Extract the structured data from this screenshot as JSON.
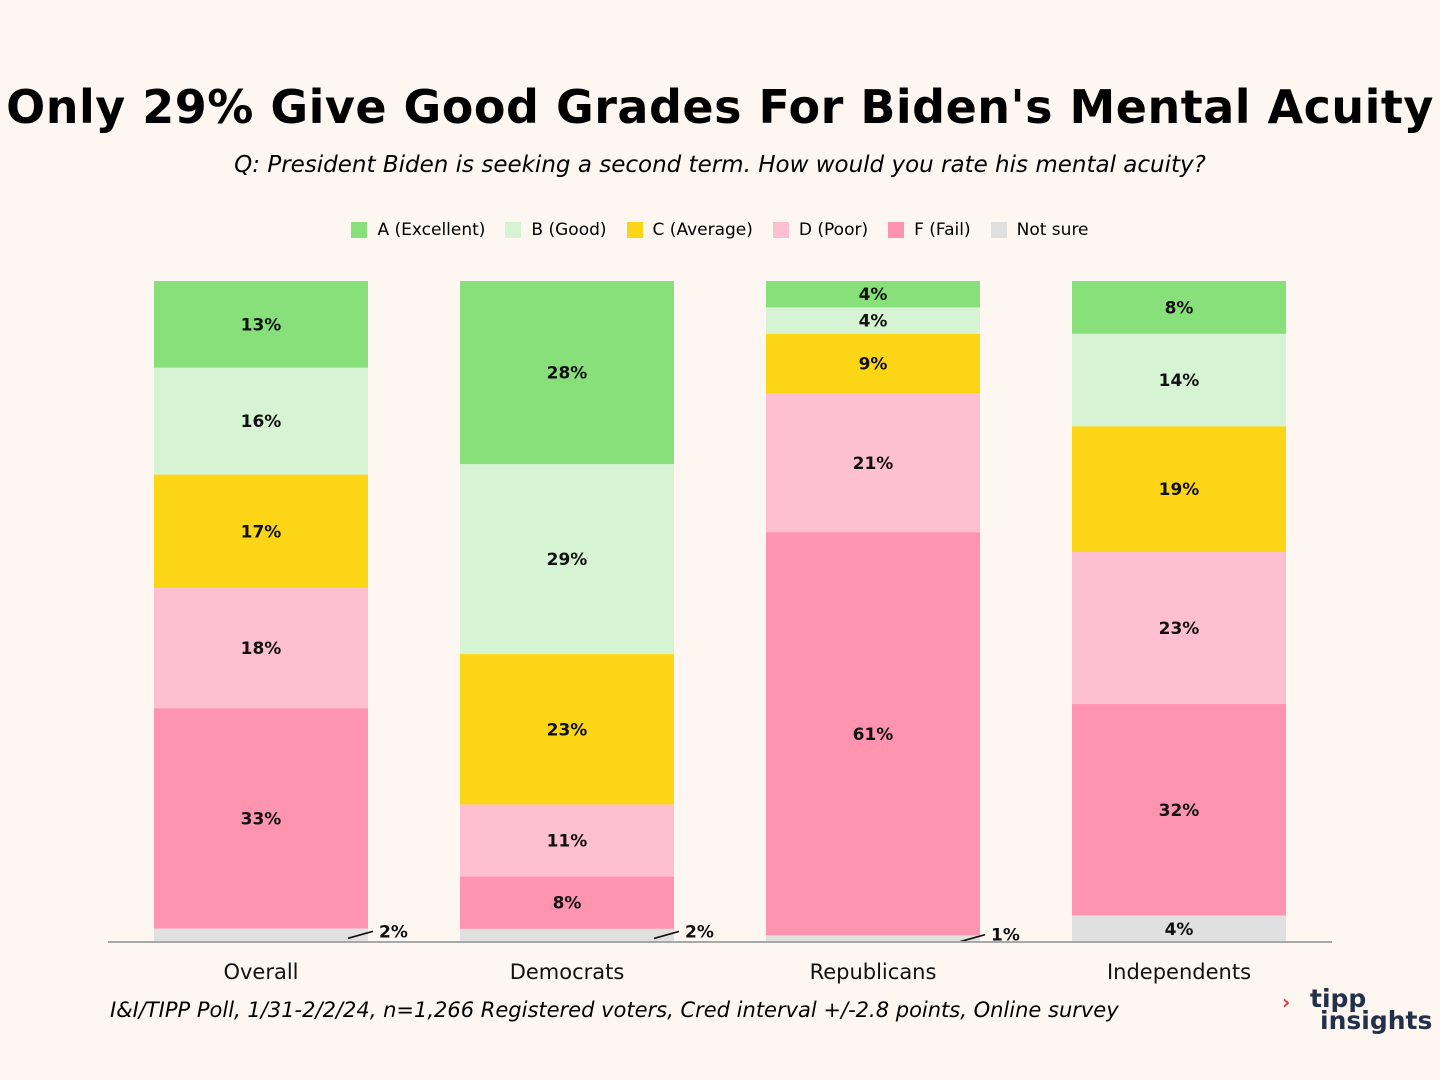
{
  "title": "Only 29% Give Good Grades For Biden's Mental Acuity",
  "subtitle": "Q:  President Biden is seeking a second term. How would you rate his mental acuity?",
  "source": "I&I/TIPP Poll, 1/31-2/2/24, n=1,266 Registered voters, Cred interval +/-2.8 points, Online survey",
  "logo": {
    "mark": "›",
    "line1": "tipp",
    "line2": "insights"
  },
  "chart_data": {
    "type": "bar",
    "stacked": true,
    "title": "Only 29% Give Good Grades For Biden's Mental Acuity",
    "categories": [
      "Overall",
      "Democrats",
      "Republicans",
      "Independents"
    ],
    "series": [
      {
        "name": "A (Excellent)",
        "color": "#88e07a",
        "values": [
          13,
          28,
          4,
          8
        ]
      },
      {
        "name": "B (Good)",
        "color": "#d6f4d3",
        "values": [
          16,
          29,
          4,
          14
        ]
      },
      {
        "name": "C (Average)",
        "color": "#fcd616",
        "values": [
          17,
          23,
          9,
          19
        ]
      },
      {
        "name": "D (Poor)",
        "color": "#fec0d0",
        "values": [
          18,
          11,
          21,
          23
        ]
      },
      {
        "name": "F (Fail)",
        "color": "#fe94b0",
        "values": [
          33,
          8,
          61,
          32
        ]
      },
      {
        "name": "Not sure",
        "color": "#e0e0e0",
        "values": [
          2,
          2,
          1,
          4
        ]
      }
    ],
    "value_suffix": "%",
    "legend_position": "top",
    "ylim": [
      0,
      100
    ],
    "grid": false
  }
}
